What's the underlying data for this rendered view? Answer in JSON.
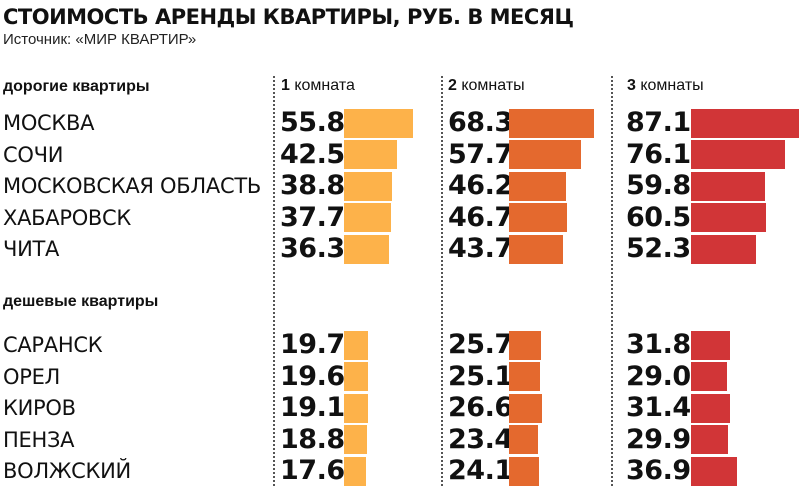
{
  "header": {
    "title": "СТОИМОСТЬ АРЕНДЫ КВАРТИРЫ, РУБ. В МЕСЯЦ",
    "source": "Источник: «МИР КВАРТИР»"
  },
  "colors": {
    "col1": "#FDB24A",
    "col2": "#E4692E",
    "col3": "#D13537"
  },
  "chart_data": {
    "type": "bar",
    "title": "СТОИМОСТЬ АРЕНДЫ КВАРТИРЫ, РУБ. В МЕСЯЦ",
    "columns": [
      {
        "num": "1",
        "label": "комната"
      },
      {
        "num": "2",
        "label": "комнаты"
      },
      {
        "num": "3",
        "label": "комнаты"
      }
    ],
    "groups": [
      {
        "title": "дорогие квартиры",
        "rows": [
          {
            "city": "МОСКВА",
            "values": [
              "55.8",
              "68.3",
              "87.1"
            ]
          },
          {
            "city": "СОЧИ",
            "values": [
              "42.5",
              "57.7",
              "76.1"
            ]
          },
          {
            "city": "МОСКОВСКАЯ ОБЛАСТЬ",
            "values": [
              "38.8",
              "46.2",
              "59.8"
            ]
          },
          {
            "city": "ХАБАРОВСК",
            "values": [
              "37.7",
              "46.7",
              "60.5"
            ]
          },
          {
            "city": "ЧИТА",
            "values": [
              "36.3",
              "43.7",
              "52.3"
            ]
          }
        ]
      },
      {
        "title": "дешевые квартиры",
        "rows": [
          {
            "city": "САРАНСК",
            "values": [
              "19.7",
              "25.7",
              "31.8"
            ]
          },
          {
            "city": "ОРЕЛ",
            "values": [
              "19.6",
              "25.1",
              "29.0"
            ]
          },
          {
            "city": "КИРОВ",
            "values": [
              "19.1",
              "26.6",
              "31.4"
            ]
          },
          {
            "city": "ПЕНЗА",
            "values": [
              "18.8",
              "23.4",
              "29.9"
            ]
          },
          {
            "city": "ВОЛЖСКИЙ",
            "values": [
              "17.6",
              "24.1",
              "36.9"
            ]
          }
        ]
      }
    ]
  }
}
